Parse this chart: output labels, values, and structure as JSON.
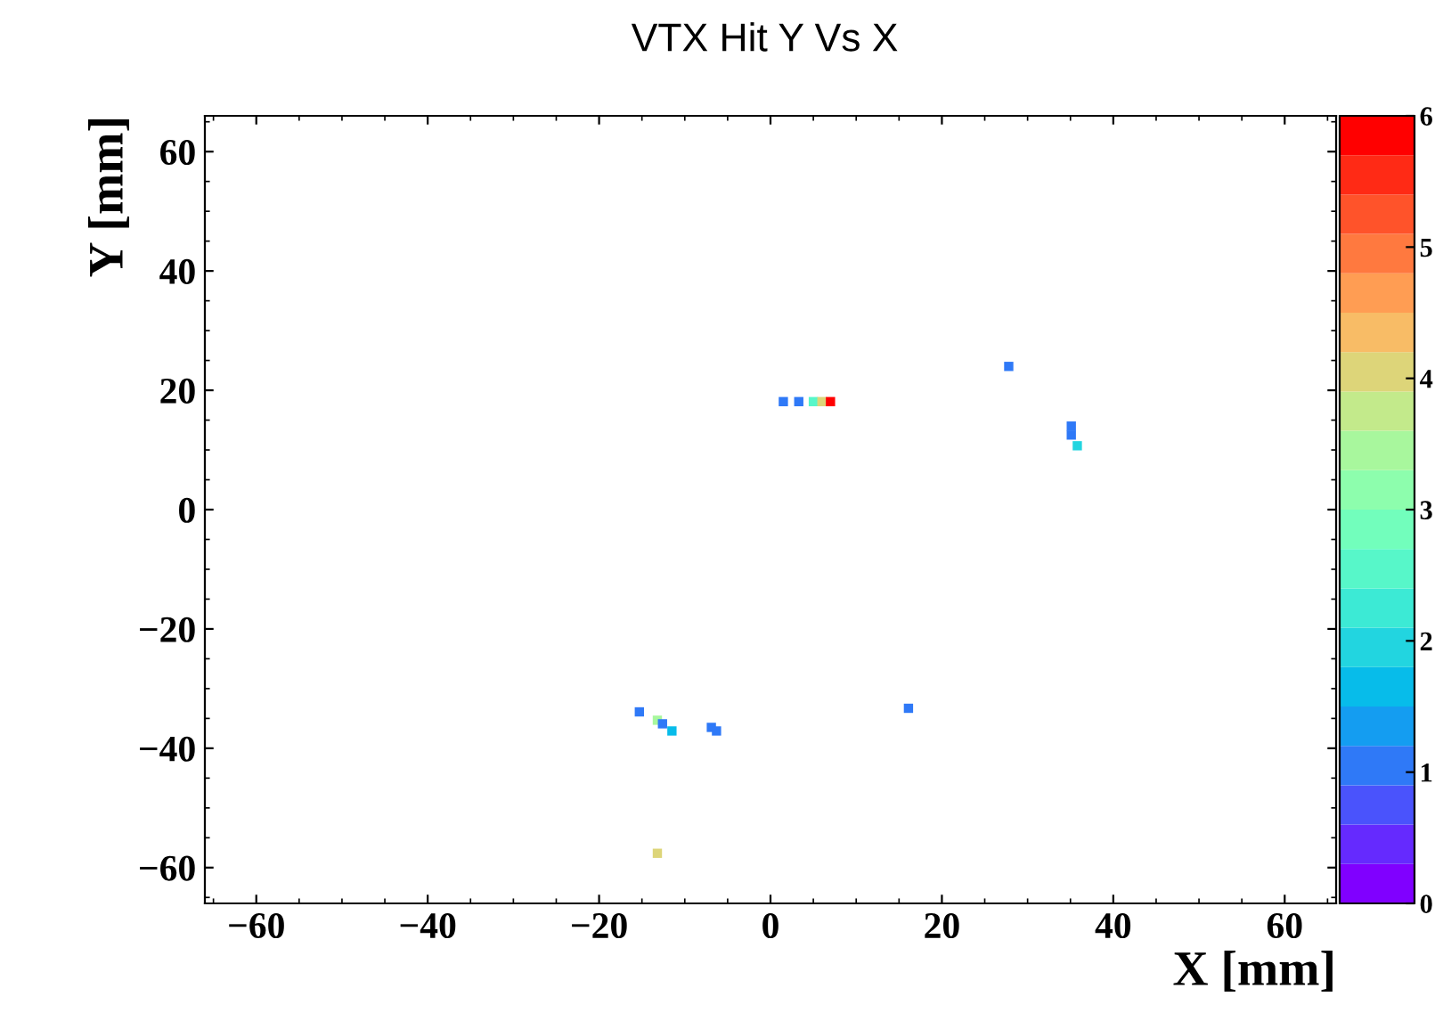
{
  "chart_data": {
    "type": "scatter",
    "title": "VTX Hit Y Vs X",
    "xlabel": "X [mm]",
    "ylabel": "Y [mm]",
    "x": [
      1.5,
      3.3,
      5.0,
      6.0,
      7.0,
      27.8,
      35.1,
      35.1,
      35.8,
      -15.3,
      -13.2,
      -12.6,
      -11.5,
      -6.9,
      -6.3,
      16.1,
      -13.2
    ],
    "values": [
      18.1,
      18.1,
      18.1,
      18.1,
      18.1,
      24.0,
      14.0,
      12.5,
      10.7,
      -33.9,
      -35.3,
      -35.9,
      -37.1,
      -36.5,
      -37.1,
      -33.3,
      -57.6
    ],
    "cvalues": [
      1,
      1,
      2.5,
      4,
      5.8,
      1,
      1,
      1,
      2,
      1,
      3.5,
      1,
      1.5,
      1,
      1,
      1,
      4
    ],
    "marker": "square",
    "xlim": [
      -66,
      66
    ],
    "ylim": [
      -66,
      66
    ],
    "xticks": [
      -60,
      -40,
      -20,
      0,
      20,
      40,
      60
    ],
    "yticks": [
      -60,
      -40,
      -20,
      0,
      20,
      40,
      60
    ],
    "clim": [
      0,
      6
    ],
    "cticks": [
      0,
      1,
      2,
      3,
      4,
      5,
      6
    ],
    "grid": false,
    "legend": false
  }
}
